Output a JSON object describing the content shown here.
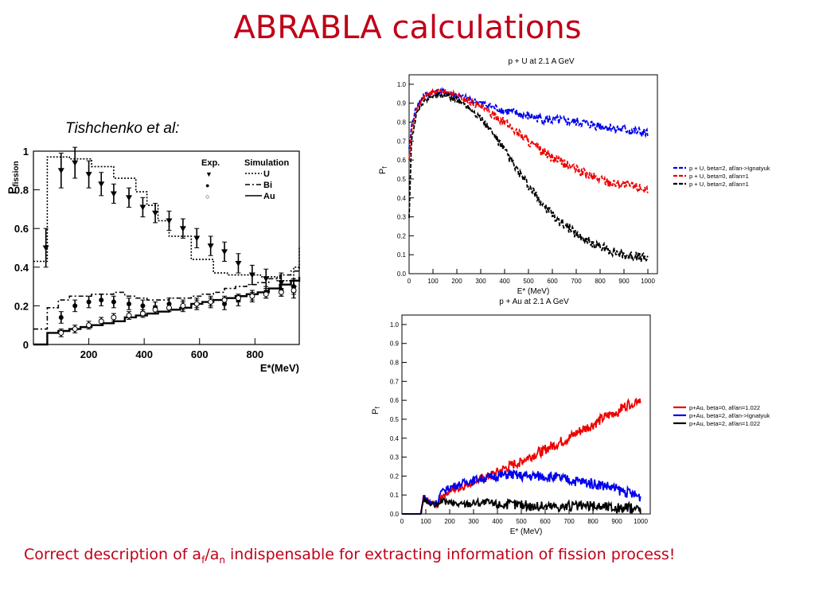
{
  "title": "ABRABLA calculations",
  "citation": "Tishchenko et al:",
  "footer": {
    "pre": "Correct description of a",
    "sub1": "f",
    "mid": "/a",
    "sub2": "n",
    "post": " indispensable for extracting information of fission process!"
  },
  "chart_data": [
    {
      "type": "line",
      "title": "",
      "xlabel": "E*(MeV)",
      "ylabel": "P",
      "ylabel_sub": "fission",
      "xlim": [
        0,
        960
      ],
      "ylim": [
        0,
        1.0
      ],
      "xticks": [
        200,
        400,
        600,
        800
      ],
      "yticks": [
        0,
        0.2,
        0.4,
        0.6,
        0.8,
        1
      ],
      "legend": {
        "position": "top-right",
        "headers": [
          "Exp.",
          "Simulation"
        ],
        "rows": [
          {
            "marker": "▼",
            "label": "U",
            "style": "dotted"
          },
          {
            "marker": "●",
            "label": "Bi",
            "style": "dash-dot"
          },
          {
            "marker": "○",
            "label": "Au",
            "style": "solid"
          }
        ]
      },
      "series": [
        {
          "name": "U",
          "kind": "simulation",
          "style": "dotted",
          "x": [
            0,
            50,
            75,
            130,
            210,
            290,
            370,
            410,
            450,
            490,
            570,
            650,
            700,
            760,
            820,
            880,
            940,
            960
          ],
          "y": [
            0.43,
            0.97,
            0.97,
            0.96,
            0.92,
            0.86,
            0.79,
            0.72,
            0.64,
            0.56,
            0.44,
            0.37,
            0.36,
            0.36,
            0.35,
            0.33,
            0.4,
            0.5
          ]
        },
        {
          "name": "Bi",
          "kind": "simulation",
          "style": "dash-dot",
          "x": [
            0,
            50,
            90,
            130,
            170,
            210,
            250,
            290,
            330,
            370,
            410,
            450,
            490,
            530,
            570,
            610,
            650,
            690,
            730,
            770,
            810,
            850,
            890,
            930,
            960
          ],
          "y": [
            0.08,
            0.19,
            0.23,
            0.25,
            0.25,
            0.26,
            0.26,
            0.27,
            0.25,
            0.24,
            0.23,
            0.23,
            0.24,
            0.24,
            0.25,
            0.26,
            0.27,
            0.29,
            0.3,
            0.31,
            0.32,
            0.34,
            0.36,
            0.38,
            0.4
          ]
        },
        {
          "name": "Au",
          "kind": "simulation",
          "style": "solid",
          "x": [
            0,
            50,
            90,
            130,
            170,
            210,
            250,
            290,
            330,
            370,
            410,
            450,
            490,
            530,
            570,
            610,
            650,
            690,
            730,
            770,
            810,
            850,
            890,
            930,
            960
          ],
          "y": [
            0.0,
            0.06,
            0.07,
            0.08,
            0.09,
            0.1,
            0.11,
            0.12,
            0.14,
            0.15,
            0.16,
            0.17,
            0.18,
            0.19,
            0.21,
            0.22,
            0.23,
            0.24,
            0.25,
            0.26,
            0.27,
            0.29,
            0.31,
            0.33,
            0.35
          ]
        },
        {
          "name": "U",
          "kind": "experiment",
          "marker": "triangle-down",
          "x": [
            45,
            100,
            150,
            200,
            245,
            290,
            345,
            395,
            440,
            490,
            540,
            590,
            640,
            690,
            740,
            790,
            840,
            895,
            940
          ],
          "y": [
            0.5,
            0.9,
            0.94,
            0.88,
            0.83,
            0.78,
            0.76,
            0.71,
            0.68,
            0.64,
            0.6,
            0.55,
            0.51,
            0.48,
            0.42,
            0.36,
            0.34,
            0.32,
            0.29
          ],
          "err": [
            0.1,
            0.09,
            0.08,
            0.07,
            0.06,
            0.05,
            0.05,
            0.05,
            0.05,
            0.05,
            0.05,
            0.05,
            0.05,
            0.05,
            0.05,
            0.05,
            0.05,
            0.05,
            0.05
          ]
        },
        {
          "name": "Bi",
          "kind": "experiment",
          "marker": "filled-circle",
          "x": [
            100,
            150,
            200,
            245,
            290,
            345,
            395,
            440,
            490,
            540,
            590,
            640,
            690,
            740,
            790,
            840,
            895,
            940
          ],
          "y": [
            0.14,
            0.2,
            0.22,
            0.23,
            0.22,
            0.21,
            0.2,
            0.19,
            0.21,
            0.2,
            0.21,
            0.22,
            0.21,
            0.23,
            0.25,
            0.27,
            0.28,
            0.3
          ],
          "err": [
            0.03,
            0.03,
            0.03,
            0.03,
            0.03,
            0.03,
            0.03,
            0.03,
            0.03,
            0.03,
            0.03,
            0.03,
            0.03,
            0.03,
            0.03,
            0.03,
            0.03,
            0.03
          ]
        },
        {
          "name": "Au",
          "kind": "experiment",
          "marker": "open-circle",
          "x": [
            100,
            150,
            200,
            245,
            290,
            345,
            395,
            440,
            490,
            540,
            590,
            640,
            690,
            740,
            790,
            840,
            895,
            940
          ],
          "y": [
            0.06,
            0.08,
            0.1,
            0.12,
            0.14,
            0.15,
            0.16,
            0.18,
            0.19,
            0.2,
            0.21,
            0.22,
            0.23,
            0.24,
            0.25,
            0.26,
            0.27,
            0.28
          ],
          "err": [
            0.02,
            0.02,
            0.02,
            0.02,
            0.02,
            0.02,
            0.02,
            0.02,
            0.02,
            0.02,
            0.02,
            0.02,
            0.02,
            0.02,
            0.02,
            0.02,
            0.02,
            0.02
          ]
        }
      ]
    },
    {
      "type": "line",
      "title": "p + U at 2.1 A GeV",
      "xlabel": "E* (MeV)",
      "ylabel": "P",
      "ylabel_sub": "f",
      "xlim": [
        0,
        1040
      ],
      "ylim": [
        0,
        1.05
      ],
      "xticks": [
        0,
        100,
        200,
        300,
        400,
        500,
        600,
        700,
        800,
        900,
        1000
      ],
      "yticks": [
        0.0,
        0.1,
        0.2,
        0.3,
        0.4,
        0.5,
        0.6,
        0.7,
        0.8,
        0.9,
        1.0
      ],
      "legend_position": "right",
      "series": [
        {
          "name": "p + U, beta=2, af/an->Ignatyuk",
          "color": "#0000ee",
          "style": "dashed",
          "x": [
            0,
            10,
            30,
            60,
            100,
            150,
            200,
            300,
            400,
            500,
            600,
            700,
            800,
            900,
            1000
          ],
          "y": [
            0.65,
            0.78,
            0.88,
            0.94,
            0.96,
            0.96,
            0.94,
            0.9,
            0.86,
            0.83,
            0.81,
            0.8,
            0.78,
            0.76,
            0.74
          ]
        },
        {
          "name": "p + U, beta=0, af/an=1",
          "color": "#ee0000",
          "style": "dashed",
          "x": [
            0,
            10,
            30,
            60,
            100,
            150,
            200,
            250,
            300,
            350,
            400,
            450,
            500,
            550,
            600,
            650,
            700,
            750,
            800,
            850,
            900,
            950,
            1000
          ],
          "y": [
            0.6,
            0.75,
            0.86,
            0.93,
            0.96,
            0.96,
            0.94,
            0.91,
            0.88,
            0.84,
            0.8,
            0.75,
            0.7,
            0.65,
            0.61,
            0.58,
            0.55,
            0.52,
            0.5,
            0.48,
            0.47,
            0.46,
            0.45
          ]
        },
        {
          "name": "p + U, beta=2, af/an=1",
          "color": "#000000",
          "style": "dashed",
          "x": [
            0,
            10,
            30,
            60,
            100,
            150,
            200,
            250,
            300,
            350,
            400,
            450,
            500,
            550,
            600,
            650,
            700,
            750,
            800,
            850,
            900,
            950,
            1000
          ],
          "y": [
            0.3,
            0.7,
            0.84,
            0.91,
            0.94,
            0.94,
            0.92,
            0.88,
            0.82,
            0.74,
            0.65,
            0.55,
            0.46,
            0.38,
            0.31,
            0.26,
            0.21,
            0.17,
            0.14,
            0.12,
            0.1,
            0.09,
            0.08
          ]
        }
      ]
    },
    {
      "type": "line",
      "title": "p + Au at 2.1 A GeV",
      "xlabel": "E* (MeV)",
      "ylabel": "P",
      "ylabel_sub": "f",
      "xlim": [
        0,
        1040
      ],
      "ylim": [
        0,
        1.05
      ],
      "xticks": [
        0,
        100,
        200,
        300,
        400,
        500,
        600,
        700,
        800,
        900,
        1000
      ],
      "yticks": [
        0.0,
        0.1,
        0.2,
        0.3,
        0.4,
        0.5,
        0.6,
        0.7,
        0.8,
        0.9,
        1.0
      ],
      "legend_position": "right",
      "series": [
        {
          "name": "p+Au, beta=0, af/an=1.022",
          "color": "#ee0000",
          "style": "solid",
          "x": [
            0,
            80,
            90,
            100,
            120,
            150,
            160,
            200,
            250,
            300,
            350,
            400,
            450,
            500,
            550,
            600,
            650,
            700,
            750,
            800,
            850,
            900,
            950,
            1000
          ],
          "y": [
            0.0,
            0.0,
            0.09,
            0.08,
            0.06,
            0.05,
            0.09,
            0.12,
            0.14,
            0.17,
            0.19,
            0.22,
            0.25,
            0.28,
            0.31,
            0.34,
            0.37,
            0.4,
            0.44,
            0.47,
            0.51,
            0.54,
            0.58,
            0.61
          ]
        },
        {
          "name": "p+Au, beta=2, af/an->Ignatyuk",
          "color": "#0000ee",
          "style": "solid",
          "x": [
            0,
            80,
            90,
            100,
            120,
            150,
            160,
            200,
            250,
            300,
            350,
            400,
            450,
            500,
            550,
            600,
            650,
            700,
            750,
            800,
            850,
            900,
            950,
            1000
          ],
          "y": [
            0.0,
            0.0,
            0.09,
            0.08,
            0.06,
            0.06,
            0.11,
            0.14,
            0.16,
            0.18,
            0.19,
            0.2,
            0.21,
            0.2,
            0.2,
            0.2,
            0.19,
            0.18,
            0.17,
            0.16,
            0.15,
            0.13,
            0.11,
            0.09
          ]
        },
        {
          "name": "p+Au, beta=2, af/an=1.022",
          "color": "#000000",
          "style": "solid",
          "x": [
            0,
            80,
            90,
            100,
            120,
            150,
            160,
            200,
            250,
            300,
            350,
            400,
            450,
            500,
            550,
            600,
            650,
            700,
            750,
            800,
            850,
            900,
            950,
            1000
          ],
          "y": [
            0.0,
            0.0,
            0.08,
            0.07,
            0.05,
            0.04,
            0.07,
            0.06,
            0.05,
            0.06,
            0.06,
            0.05,
            0.05,
            0.05,
            0.04,
            0.04,
            0.04,
            0.04,
            0.04,
            0.04,
            0.04,
            0.03,
            0.03,
            0.03
          ]
        }
      ]
    }
  ]
}
